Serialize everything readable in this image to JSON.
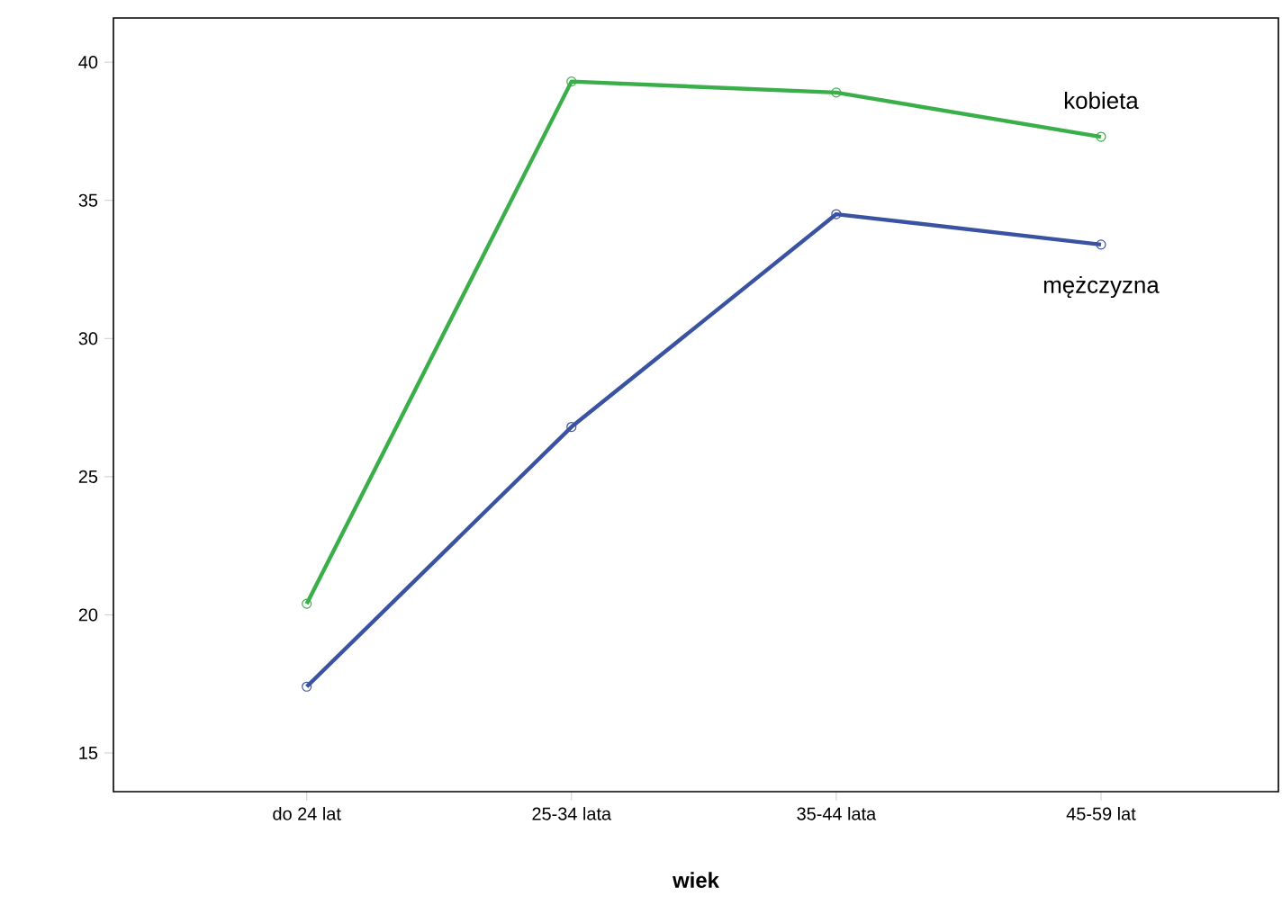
{
  "chart_data": {
    "type": "line",
    "xlabel": "wiek",
    "categories": [
      "do 24 lat",
      "25-34 lata",
      "35-44 lata",
      "45-59 lat"
    ],
    "series": [
      {
        "name": "kobieta",
        "color": "#3aae49",
        "values": [
          20.4,
          39.3,
          38.9,
          37.3
        ]
      },
      {
        "name": "mężczyzna",
        "color": "#3a52a2",
        "values": [
          17.4,
          26.8,
          34.5,
          33.4
        ]
      }
    ],
    "ylim": [
      13.6,
      41.6
    ],
    "yticks": [
      15,
      20,
      25,
      30,
      35,
      40
    ],
    "marker": "circle",
    "line_style": "solid"
  }
}
